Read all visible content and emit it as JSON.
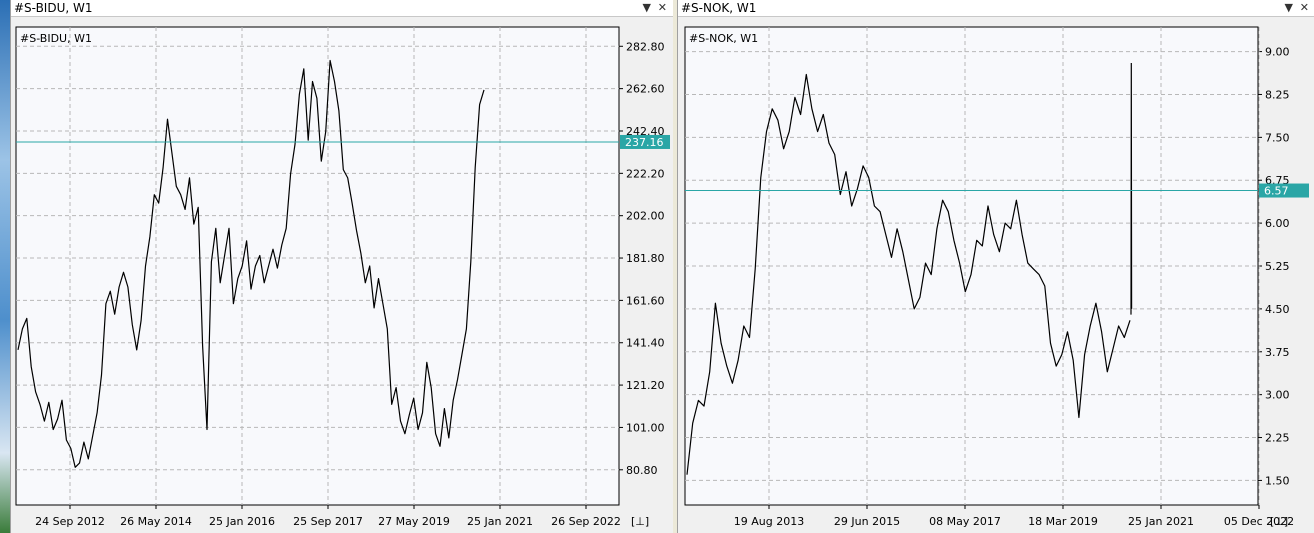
{
  "windows": [
    {
      "title": "#S-BIDU, W1",
      "chart_label": "#S-BIDU, W1",
      "price_tag": "237.16",
      "colors": {
        "background": "#f8f9fc",
        "grid": "#b8b8b8",
        "line": "#000000",
        "level": "#2aa6a6"
      },
      "icons": [
        "dropdown-icon",
        "close-icon",
        "scroll-end-icon"
      ],
      "scroll_btn": "[⊥]",
      "chart_data": {
        "type": "line",
        "ylim": [
          64,
          292
        ],
        "y_ticks": [
          "282.80",
          "262.60",
          "242.40",
          "222.20",
          "202.00",
          "181.80",
          "161.60",
          "141.40",
          "121.20",
          "101.00",
          "80.80"
        ],
        "x_ticks": [
          "24 Sep 2012",
          "26 May 2014",
          "25 Jan 2016",
          "25 Sep 2017",
          "27 May 2019",
          "25 Jan 2021",
          "26 Sep 2022"
        ],
        "level": 237.16,
        "series": [
          {
            "values": [
              138,
              148,
              153,
              130,
              118,
              112,
              104,
              113,
              100,
              105,
              114,
              95,
              91,
              82,
              84,
              94,
              86,
              97,
              108,
              126,
              160,
              166,
              155,
              168,
              175,
              168,
              150,
              138,
              152,
              178,
              192,
              212,
              208,
              225,
              248,
              232,
              216,
              212,
              205,
              220,
              198,
              206,
              140,
              100,
              180,
              196,
              170,
              183,
              196,
              160,
              172,
              178,
              190,
              167,
              178,
              183,
              170,
              178,
              186,
              177,
              188,
              196,
              222,
              236,
              260,
              272,
              238,
              266,
              258,
              228,
              242,
              276,
              266,
              252,
              224,
              220,
              208,
              195,
              184,
              170,
              178,
              158,
              172,
              160,
              148,
              112,
              120,
              104,
              98,
              107,
              115,
              100,
              108,
              132,
              120,
              98,
              92,
              110,
              96,
              114,
              124,
              136,
              148,
              180,
              225,
              255,
              262
            ]
          }
        ]
      }
    },
    {
      "title": "#S-NOK, W1",
      "chart_label": "#S-NOK, W1",
      "price_tag": "6.57",
      "colors": {
        "background": "#f8f9fc",
        "grid": "#b8b8b8",
        "line": "#000000",
        "level": "#2aa6a6"
      },
      "icons": [
        "dropdown-icon",
        "close-icon",
        "scroll-end-icon"
      ],
      "scroll_btn": "[⊥]",
      "chart_data": {
        "type": "line",
        "ylim": [
          1.07,
          9.43
        ],
        "y_ticks": [
          "9.00",
          "8.25",
          "7.50",
          "6.75",
          "6.00",
          "5.25",
          "4.50",
          "3.75",
          "3.00",
          "2.25",
          "1.50"
        ],
        "x_ticks": [
          "19 Aug 2013",
          "29 Jun 2015",
          "08 May 2017",
          "18 Mar 2019",
          "25 Jan 2021",
          "05 Dec 2022"
        ],
        "level": 6.57,
        "series": [
          {
            "values": [
              1.6,
              2.5,
              2.9,
              2.8,
              3.4,
              4.6,
              3.9,
              3.5,
              3.2,
              3.6,
              4.2,
              4.0,
              5.2,
              6.8,
              7.6,
              8.0,
              7.8,
              7.3,
              7.6,
              8.2,
              7.9,
              8.6,
              8.0,
              7.6,
              7.9,
              7.4,
              7.2,
              6.5,
              6.9,
              6.3,
              6.6,
              7.0,
              6.8,
              6.3,
              6.2,
              5.8,
              5.4,
              5.9,
              5.5,
              5.0,
              4.5,
              4.7,
              5.3,
              5.1,
              5.9,
              6.4,
              6.2,
              5.7,
              5.3,
              4.8,
              5.1,
              5.7,
              5.6,
              6.3,
              5.8,
              5.5,
              6.0,
              5.9,
              6.4,
              5.8,
              5.3,
              5.2,
              5.1,
              4.9,
              3.9,
              3.5,
              3.7,
              4.1,
              3.6,
              2.6,
              3.7,
              4.2,
              4.6,
              4.1,
              3.4,
              3.8,
              4.2,
              4.0,
              4.3
            ]
          }
        ],
        "spike": {
          "values": [
            4.4,
            8.8,
            4.5
          ]
        }
      }
    }
  ]
}
